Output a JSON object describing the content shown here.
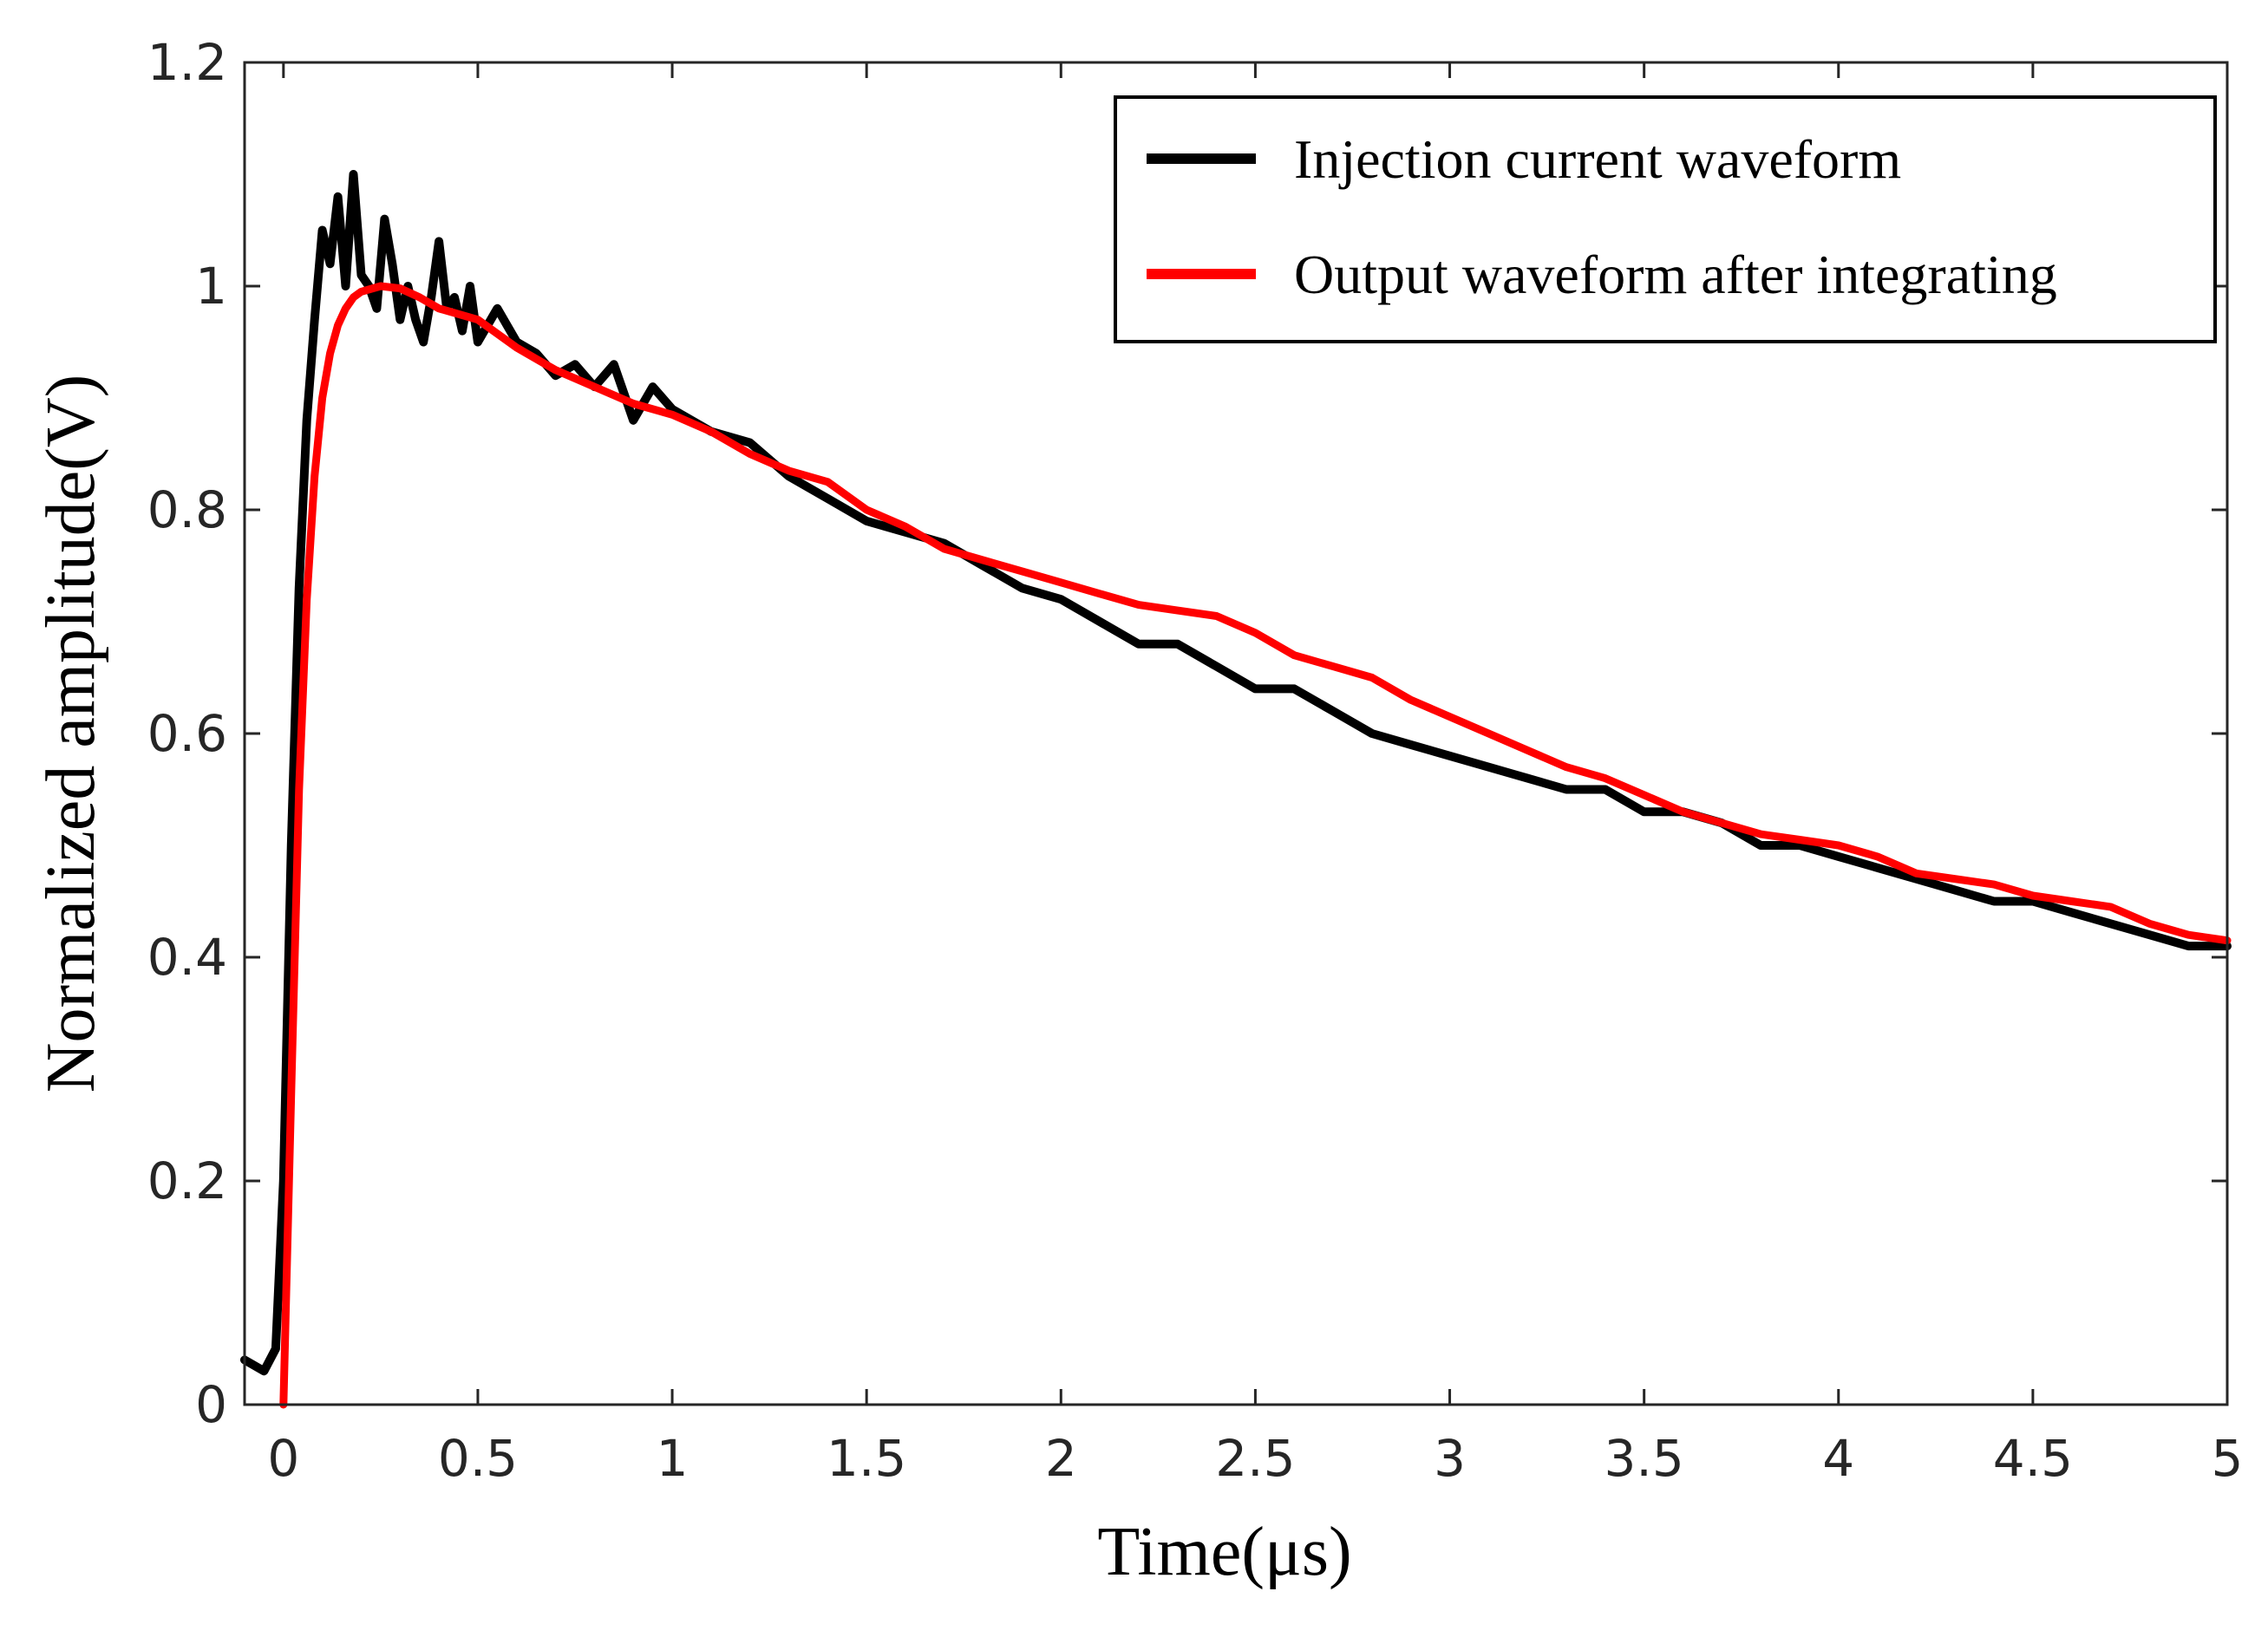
{
  "chart_data": {
    "type": "line",
    "title": "",
    "xlabel": "Time(μs)",
    "ylabel": "Normalized  amplitude(V)",
    "xlim": [
      -0.1,
      5
    ],
    "ylim": [
      0,
      1.2
    ],
    "xticks": [
      0,
      0.5,
      1,
      1.5,
      2,
      2.5,
      3,
      3.5,
      4,
      4.5,
      5
    ],
    "xtick_labels": [
      "0",
      "0.5",
      "1",
      "1.5",
      "2",
      "2.5",
      "3",
      "3.5",
      "4",
      "4.5",
      "5"
    ],
    "yticks": [
      0,
      0.2,
      0.4,
      0.6,
      0.8,
      1,
      1.2
    ],
    "ytick_labels": [
      "0",
      "0.2",
      "0.4",
      "0.6",
      "0.8",
      "1",
      "1.2"
    ],
    "grid": false,
    "legend_position": "top-right",
    "series": [
      {
        "name": "Injection current waveform",
        "color": "#000000",
        "x": [
          -0.1,
          -0.05,
          -0.02,
          0.0,
          0.02,
          0.04,
          0.06,
          0.08,
          0.1,
          0.12,
          0.14,
          0.16,
          0.18,
          0.2,
          0.22,
          0.24,
          0.26,
          0.28,
          0.3,
          0.32,
          0.34,
          0.36,
          0.38,
          0.4,
          0.42,
          0.44,
          0.46,
          0.48,
          0.5,
          0.55,
          0.6,
          0.65,
          0.7,
          0.75,
          0.8,
          0.85,
          0.9,
          0.95,
          1.0,
          1.1,
          1.2,
          1.3,
          1.4,
          1.5,
          1.6,
          1.7,
          1.8,
          1.9,
          2.0,
          2.1,
          2.2,
          2.3,
          2.4,
          2.5,
          2.6,
          2.7,
          2.8,
          2.9,
          3.0,
          3.1,
          3.2,
          3.3,
          3.4,
          3.5,
          3.6,
          3.7,
          3.8,
          3.9,
          4.0,
          4.1,
          4.2,
          4.3,
          4.4,
          4.5,
          4.6,
          4.7,
          4.8,
          4.9,
          5.0
        ],
        "y": [
          0.04,
          0.03,
          0.05,
          0.2,
          0.5,
          0.73,
          0.88,
          0.97,
          1.05,
          1.02,
          1.08,
          1.0,
          1.1,
          1.01,
          1.0,
          0.98,
          1.06,
          1.02,
          0.97,
          1.0,
          0.97,
          0.95,
          0.99,
          1.04,
          0.98,
          0.99,
          0.96,
          1.0,
          0.95,
          0.98,
          0.95,
          0.94,
          0.92,
          0.93,
          0.91,
          0.93,
          0.88,
          0.91,
          0.89,
          0.87,
          0.86,
          0.83,
          0.81,
          0.79,
          0.78,
          0.77,
          0.75,
          0.73,
          0.72,
          0.7,
          0.68,
          0.68,
          0.66,
          0.64,
          0.64,
          0.62,
          0.6,
          0.59,
          0.58,
          0.57,
          0.56,
          0.55,
          0.55,
          0.53,
          0.53,
          0.52,
          0.5,
          0.5,
          0.49,
          0.48,
          0.47,
          0.46,
          0.45,
          0.45,
          0.44,
          0.43,
          0.42,
          0.41,
          0.41
        ]
      },
      {
        "name": "Output waveform after integrating",
        "color": "#ff0000",
        "x": [
          0.0,
          0.02,
          0.04,
          0.06,
          0.08,
          0.1,
          0.12,
          0.14,
          0.16,
          0.18,
          0.2,
          0.25,
          0.3,
          0.35,
          0.4,
          0.5,
          0.6,
          0.7,
          0.8,
          0.9,
          1.0,
          1.1,
          1.2,
          1.3,
          1.4,
          1.5,
          1.6,
          1.7,
          1.8,
          1.9,
          2.0,
          2.1,
          2.2,
          2.3,
          2.4,
          2.5,
          2.6,
          2.7,
          2.8,
          2.9,
          3.0,
          3.1,
          3.2,
          3.3,
          3.4,
          3.5,
          3.6,
          3.7,
          3.8,
          3.9,
          4.0,
          4.1,
          4.2,
          4.3,
          4.4,
          4.5,
          4.6,
          4.7,
          4.8,
          4.9,
          5.0
        ],
        "y": [
          0.0,
          0.28,
          0.55,
          0.72,
          0.83,
          0.9,
          0.94,
          0.965,
          0.98,
          0.99,
          0.995,
          1.0,
          0.998,
          0.99,
          0.98,
          0.97,
          0.945,
          0.925,
          0.91,
          0.895,
          0.885,
          0.87,
          0.85,
          0.835,
          0.825,
          0.8,
          0.785,
          0.765,
          0.755,
          0.745,
          0.735,
          0.725,
          0.715,
          0.71,
          0.705,
          0.69,
          0.67,
          0.66,
          0.65,
          0.63,
          0.615,
          0.6,
          0.585,
          0.57,
          0.56,
          0.545,
          0.53,
          0.52,
          0.51,
          0.505,
          0.5,
          0.49,
          0.475,
          0.47,
          0.465,
          0.455,
          0.45,
          0.445,
          0.43,
          0.42,
          0.415
        ]
      }
    ]
  }
}
